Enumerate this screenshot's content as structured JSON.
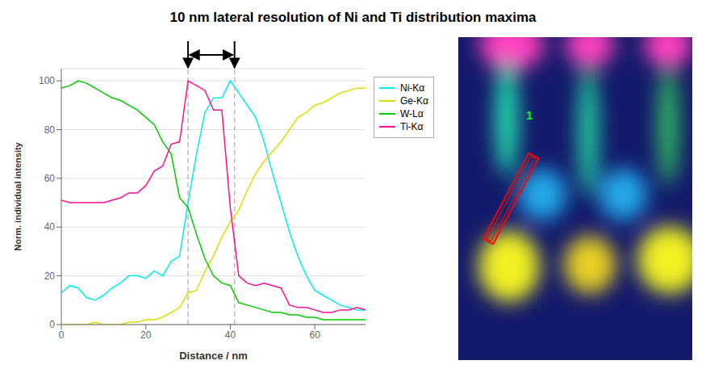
{
  "chart_data": {
    "type": "line",
    "title": "10 nm lateral resolution of Ni and Ti distribution maxima",
    "xlabel": "Distance / nm",
    "ylabel": "Norm. individual intensity",
    "x": [
      0,
      2,
      4,
      6,
      8,
      10,
      12,
      14,
      16,
      18,
      20,
      22,
      24,
      26,
      28,
      30,
      32,
      34,
      36,
      38,
      40,
      42,
      44,
      46,
      48,
      50,
      52,
      54,
      56,
      58,
      60,
      62,
      64,
      66,
      68,
      70,
      72
    ],
    "series": [
      {
        "name": "Ni-Kα",
        "color": "#00EEEE",
        "values": [
          13,
          16,
          15,
          11,
          10,
          12,
          15,
          17,
          20,
          20,
          19,
          22,
          20,
          26,
          28,
          50,
          70,
          87,
          93,
          93,
          100,
          95,
          90,
          85,
          75,
          62,
          50,
          38,
          28,
          20,
          14,
          12,
          10,
          8,
          7,
          6,
          6
        ]
      },
      {
        "name": "Ge-Kα",
        "color": "#DDDD00",
        "values": [
          0,
          0,
          0,
          0,
          1,
          0,
          0,
          0,
          1,
          1,
          2,
          2,
          3,
          5,
          7,
          13,
          14,
          22,
          28,
          36,
          42,
          47,
          55,
          62,
          67,
          71,
          75,
          80,
          85,
          87,
          90,
          91,
          93,
          95,
          96,
          97,
          97
        ]
      },
      {
        "name": "W-Lα",
        "color": "#00CC00",
        "values": [
          97,
          98,
          100,
          99,
          97,
          95,
          93,
          92,
          90,
          88,
          85,
          82,
          75,
          70,
          52,
          48,
          37,
          27,
          20,
          17,
          16,
          9,
          8,
          7,
          6,
          5,
          5,
          4,
          4,
          3,
          3,
          2,
          2,
          2,
          2,
          2,
          2
        ]
      },
      {
        "name": "Ti-Kα",
        "color": "#FF1090",
        "values": [
          51,
          50,
          50,
          50,
          50,
          50,
          51,
          52,
          54,
          54,
          57,
          63,
          65,
          74,
          75,
          100,
          98,
          96,
          88,
          88,
          48,
          20,
          17,
          16,
          17,
          16,
          15,
          8,
          7,
          7,
          6,
          5,
          5,
          6,
          6,
          7,
          6
        ]
      }
    ],
    "xlim": [
      0,
      72
    ],
    "xticks": [
      0,
      20,
      40,
      60
    ],
    "ylim": [
      0,
      105
    ],
    "yticks": [
      0,
      20,
      40,
      60,
      80,
      100
    ],
    "vlines": [
      30,
      41
    ],
    "grid": "y",
    "legend": "right",
    "annotations": [
      {
        "text": "1"
      }
    ]
  }
}
